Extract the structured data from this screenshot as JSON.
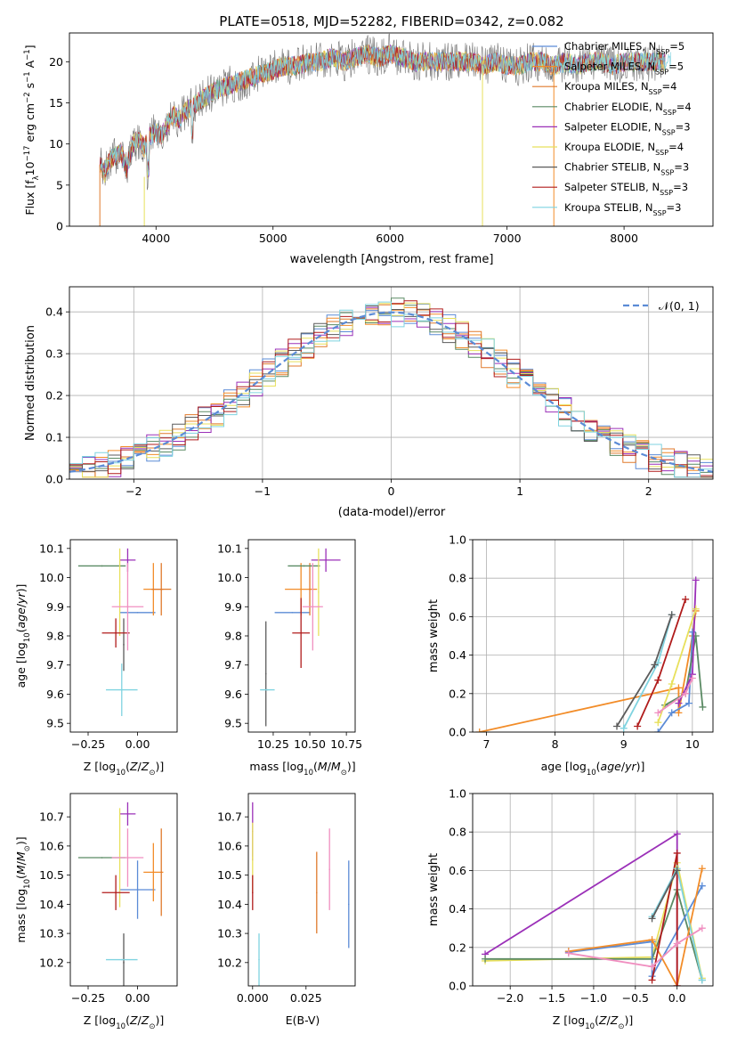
{
  "figure_title": "PLATE=0518, MJD=52282, FIBERID=0342, z=0.082",
  "series_colors": [
    "#5b8bd6",
    "#f28c28",
    "#e07a2c",
    "#5a8a63",
    "#9b30b8",
    "#e8e05c",
    "#5b5b5b",
    "#b01c1c",
    "#7fd3e0"
  ],
  "legend_spectrum": [
    {
      "name": "Chabrier MILES, N$_{SSP}$=5",
      "label": "Chabrier MILES, N",
      "sub": "SSP",
      "tail": "=5",
      "color": "#5b8bd6"
    },
    {
      "name": "Salpeter MILES, N$_{SSP}$=5",
      "label": "Salpeter MILES, N",
      "sub": "SSP",
      "tail": "=5",
      "color": "#f28c28"
    },
    {
      "name": "Kroupa MILES, N$_{SSP}$=4",
      "label": "Kroupa MILES, N",
      "sub": "SSP",
      "tail": "=4",
      "color": "#e07a2c"
    },
    {
      "name": "Chabrier ELODIE, N$_{SSP}$=4",
      "label": "Chabrier ELODIE, N",
      "sub": "SSP",
      "tail": "=4",
      "color": "#5a8a63"
    },
    {
      "name": "Salpeter ELODIE, N$_{SSP}$=3",
      "label": "Salpeter ELODIE, N",
      "sub": "SSP",
      "tail": "=3",
      "color": "#9b30b8"
    },
    {
      "name": "Kroupa ELODIE, N$_{SSP}$=4",
      "label": "Kroupa ELODIE, N",
      "sub": "SSP",
      "tail": "=4",
      "color": "#e8e05c"
    },
    {
      "name": "Chabrier STELIB, N$_{SSP}$=3",
      "label": "Chabrier STELIB, N",
      "sub": "SSP",
      "tail": "=3",
      "color": "#5b5b5b"
    },
    {
      "name": "Salpeter STELIB, N$_{SSP}$=3",
      "label": "Salpeter STELIB, N",
      "sub": "SSP",
      "tail": "=3",
      "color": "#b01c1c"
    },
    {
      "name": "Kroupa STELIB, N$_{SSP}$=3",
      "label": "Kroupa STELIB, N",
      "sub": "SSP",
      "tail": "=3",
      "color": "#7fd3e0"
    }
  ],
  "chart_data": [
    {
      "id": "spectrum",
      "type": "line",
      "title": "PLATE=0518, MJD=52282, FIBERID=0342, z=0.082",
      "xlabel": "wavelength [Angstrom, rest frame]",
      "ylabel": "Flux [f$_\\lambda$10$^{-17}$ erg cm$^{-2}$ s$^{-1}$ A$^{-1}$]",
      "xlim": [
        3260,
        8760
      ],
      "ylim": [
        0,
        23.5
      ],
      "xticks": [
        4000,
        5000,
        6000,
        7000,
        8000
      ],
      "yticks": [
        0,
        5,
        10,
        15,
        20
      ],
      "grid": false,
      "legend_loc": "right",
      "x": [
        3520,
        3560,
        3600,
        3650,
        3700,
        3750,
        3800,
        3850,
        3900,
        3950,
        4000,
        4050,
        4100,
        4150,
        4200,
        4250,
        4300,
        4350,
        4400,
        4450,
        4500,
        4600,
        4700,
        4800,
        4900,
        5000,
        5100,
        5200,
        5300,
        5400,
        5500,
        5600,
        5700,
        5800,
        5900,
        6000,
        6100,
        6200,
        6300,
        6400,
        6500,
        6600,
        6700,
        6800,
        6900,
        7000,
        7100,
        7200,
        7300,
        7400,
        7500,
        7600,
        7700,
        7800,
        7900,
        8000,
        8100,
        8200,
        8300,
        8400
      ],
      "y": [
        7.5,
        6.5,
        8.0,
        8.5,
        9.0,
        7.0,
        10.0,
        10.5,
        9.5,
        11.0,
        11.5,
        11.0,
        12.5,
        13.5,
        13.0,
        14.0,
        14.5,
        15.0,
        15.5,
        16.0,
        16.5,
        17.0,
        17.5,
        18.0,
        18.5,
        19.0,
        19.5,
        19.5,
        20.0,
        20.0,
        20.5,
        20.0,
        20.5,
        21.0,
        20.5,
        21.0,
        20.5,
        20.0,
        20.0,
        20.0,
        20.0,
        20.0,
        20.0,
        19.5,
        20.0,
        19.5,
        19.5,
        20.0,
        20.0,
        19.5,
        20.0,
        19.5,
        20.0,
        20.0,
        19.5,
        20.0,
        20.0,
        20.0,
        20.0,
        20.0
      ]
    },
    {
      "id": "residuals",
      "type": "line",
      "xlabel": "(data-model)/error",
      "ylabel": "Normed distribution",
      "xlim": [
        -2.5,
        2.5
      ],
      "ylim": [
        0,
        0.46
      ],
      "xticks": [
        -2,
        -1,
        0,
        1,
        2
      ],
      "yticks": [
        0.0,
        0.1,
        0.2,
        0.3,
        0.4
      ],
      "grid": true,
      "legend_loc": "upper right",
      "gaussian_label": "$\\mathcal{N}(0,1)$",
      "gaussian_label_text": "𝒩(0, 1)",
      "gaussian_color": "#5b8bd6",
      "bin_width": 0.1,
      "series": [
        {
          "name": "Chabrier MILES",
          "color": "#5b8bd6",
          "offset": 1
        },
        {
          "name": "Salpeter MILES",
          "color": "#f28c28",
          "offset": 2
        },
        {
          "name": "Kroupa MILES",
          "color": "#e07a2c",
          "offset": 3
        },
        {
          "name": "Chabrier ELODIE",
          "color": "#5a8a63",
          "offset": 4
        },
        {
          "name": "Salpeter ELODIE",
          "color": "#9b30b8",
          "offset": 5
        },
        {
          "name": "Kroupa ELODIE",
          "color": "#e8e05c",
          "offset": 6
        },
        {
          "name": "Chabrier STELIB",
          "color": "#5b5b5b",
          "offset": 7
        },
        {
          "name": "Salpeter STELIB",
          "color": "#b01c1c",
          "offset": 8
        },
        {
          "name": "Kroupa STELIB",
          "color": "#7fd3e0",
          "offset": 9
        }
      ]
    },
    {
      "id": "age_vs_Z",
      "type": "scatter",
      "xlabel": "Z [log$_{10}$(Z/Z$_\\odot$)]",
      "ylabel": "age  [log$_{10}$(age/yr)]",
      "xlim": [
        -0.34,
        0.2
      ],
      "ylim": [
        9.47,
        10.13
      ],
      "xticks": [
        -0.25,
        0.0
      ],
      "xticklabels": [
        "−0.25",
        "0.00"
      ],
      "yticks": [
        9.5,
        9.6,
        9.7,
        9.8,
        9.9,
        10.0,
        10.1
      ],
      "grid": false,
      "points": [
        {
          "x": 0.0,
          "y": 9.88,
          "xerr": 0.09,
          "yerr": 0.0,
          "color": "#5b8bd6"
        },
        {
          "x": 0.08,
          "y": 9.96,
          "xerr": 0.05,
          "yerr": 0.09,
          "color": "#f28c28"
        },
        {
          "x": 0.12,
          "y": 9.96,
          "xerr": 0.05,
          "yerr": 0.09,
          "color": "#e07a2c"
        },
        {
          "x": -0.18,
          "y": 10.04,
          "xerr": 0.12,
          "yerr": 0.0,
          "color": "#5a8a63"
        },
        {
          "x": -0.05,
          "y": 10.06,
          "xerr": 0.04,
          "yerr": 0.04,
          "color": "#9b30b8"
        },
        {
          "x": -0.09,
          "y": 9.95,
          "xerr": 0.0,
          "yerr": 0.15,
          "color": "#e8e05c"
        },
        {
          "x": -0.07,
          "y": 9.77,
          "xerr": 0.0,
          "yerr": 0.09,
          "color": "#5b5b5b"
        },
        {
          "x": -0.11,
          "y": 9.81,
          "xerr": 0.07,
          "yerr": 0.05,
          "color": "#b01c1c"
        },
        {
          "x": -0.08,
          "y": 9.615,
          "xerr": 0.08,
          "yerr": 0.09,
          "color": "#7fd3e0"
        },
        {
          "x": -0.05,
          "y": 9.9,
          "xerr": 0.08,
          "yerr": 0.15,
          "color": "#f08fc0"
        }
      ]
    },
    {
      "id": "age_vs_mass",
      "type": "scatter",
      "xlabel": "mass [log$_{10}$(M/M$_\\odot$)]",
      "ylabel": "",
      "xlim": [
        10.08,
        10.81
      ],
      "ylim": [
        9.47,
        10.13
      ],
      "xticks": [
        10.25,
        10.5,
        10.75
      ],
      "xticklabels": [
        "10.25",
        "10.50",
        "10.75"
      ],
      "yticks": [
        9.5,
        9.6,
        9.7,
        9.8,
        9.9,
        10.0,
        10.1
      ],
      "grid": false,
      "points": [
        {
          "x": 10.38,
          "y": 9.88,
          "xerr": 0.12,
          "yerr": 0.0,
          "color": "#5b8bd6"
        },
        {
          "x": 10.44,
          "y": 9.96,
          "xerr": 0.11,
          "yerr": 0.09,
          "color": "#f28c28"
        },
        {
          "x": 10.5,
          "y": 9.96,
          "xerr": 0.0,
          "yerr": 0.09,
          "color": "#e07a2c"
        },
        {
          "x": 10.46,
          "y": 10.04,
          "xerr": 0.11,
          "yerr": 0.0,
          "color": "#5a8a63"
        },
        {
          "x": 10.61,
          "y": 10.06,
          "xerr": 0.1,
          "yerr": 0.04,
          "color": "#9b30b8"
        },
        {
          "x": 10.56,
          "y": 9.95,
          "xerr": 0.0,
          "yerr": 0.15,
          "color": "#e8e05c"
        },
        {
          "x": 10.2,
          "y": 9.67,
          "xerr": 0.0,
          "yerr": 0.18,
          "color": "#5b5b5b"
        },
        {
          "x": 10.44,
          "y": 9.81,
          "xerr": 0.06,
          "yerr": 0.12,
          "color": "#b01c1c"
        },
        {
          "x": 10.21,
          "y": 9.615,
          "xerr": 0.05,
          "yerr": 0.0,
          "color": "#7fd3e0"
        },
        {
          "x": 10.52,
          "y": 9.9,
          "xerr": 0.07,
          "yerr": 0.15,
          "color": "#f08fc0"
        }
      ]
    },
    {
      "id": "weight_vs_age",
      "type": "line",
      "xlabel": "age  [log$_{10}$(age/yr)]",
      "ylabel": "mass weight",
      "xlim": [
        6.8,
        10.3
      ],
      "ylim": [
        0,
        1
      ],
      "xticks": [
        7,
        8,
        9,
        10
      ],
      "yticks": [
        0.0,
        0.2,
        0.4,
        0.6,
        0.8,
        1.0
      ],
      "grid": true,
      "series": [
        {
          "color": "#f28c28",
          "x": [
            6.9,
            9.8,
            9.8,
            10.0,
            10.05
          ],
          "y": [
            0.0,
            0.23,
            0.1,
            0.5,
            0.63
          ]
        },
        {
          "color": "#5b8bd6",
          "x": [
            9.5,
            9.7,
            9.95,
            10.0
          ],
          "y": [
            0.0,
            0.1,
            0.15,
            0.52
          ]
        },
        {
          "color": "#5a8a63",
          "x": [
            9.6,
            9.9,
            10.05,
            10.15
          ],
          "y": [
            0.14,
            0.2,
            0.5,
            0.13
          ]
        },
        {
          "color": "#9b30b8",
          "x": [
            9.8,
            10.0,
            10.05
          ],
          "y": [
            0.15,
            0.3,
            0.79
          ]
        },
        {
          "color": "#e8e05c",
          "x": [
            9.5,
            9.7,
            10.05
          ],
          "y": [
            0.05,
            0.25,
            0.64
          ]
        },
        {
          "color": "#b01c1c",
          "x": [
            9.2,
            9.5,
            9.9
          ],
          "y": [
            0.03,
            0.27,
            0.69
          ]
        },
        {
          "color": "#7fd3e0",
          "x": [
            9.0,
            9.5,
            9.7
          ],
          "y": [
            0.02,
            0.36,
            0.61
          ]
        },
        {
          "color": "#5b5b5b",
          "x": [
            8.9,
            9.45,
            9.7
          ],
          "y": [
            0.03,
            0.35,
            0.61
          ]
        },
        {
          "color": "#f08fc0",
          "x": [
            9.5,
            9.9,
            10.0
          ],
          "y": [
            0.1,
            0.2,
            0.28
          ]
        }
      ]
    },
    {
      "id": "mass_vs_Z",
      "type": "scatter",
      "xlabel": "Z [log$_{10}$(Z/Z$_\\odot$)]",
      "ylabel": "mass [log$_{10}$(M/M$_\\odot$)]",
      "xlim": [
        -0.34,
        0.2
      ],
      "ylim": [
        10.12,
        10.78
      ],
      "xticks": [
        -0.25,
        0.0
      ],
      "xticklabels": [
        "−0.25",
        "0.00"
      ],
      "yticks": [
        10.2,
        10.3,
        10.4,
        10.5,
        10.6,
        10.7
      ],
      "grid": false,
      "points": [
        {
          "x": 0.0,
          "y": 10.45,
          "xerr": 0.09,
          "yerr": 0.1,
          "color": "#5b8bd6"
        },
        {
          "x": 0.08,
          "y": 10.51,
          "xerr": 0.05,
          "yerr": 0.1,
          "color": "#f28c28"
        },
        {
          "x": 0.12,
          "y": 10.51,
          "xerr": 0.0,
          "yerr": 0.15,
          "color": "#e07a2c"
        },
        {
          "x": -0.18,
          "y": 10.56,
          "xerr": 0.12,
          "yerr": 0.0,
          "color": "#5a8a63"
        },
        {
          "x": -0.05,
          "y": 10.71,
          "xerr": 0.04,
          "yerr": 0.04,
          "color": "#9b30b8"
        },
        {
          "x": -0.09,
          "y": 10.56,
          "xerr": 0.0,
          "yerr": 0.17,
          "color": "#e8e05c"
        },
        {
          "x": -0.07,
          "y": 10.2,
          "xerr": 0.0,
          "yerr": 0.1,
          "color": "#5b5b5b"
        },
        {
          "x": -0.11,
          "y": 10.44,
          "xerr": 0.07,
          "yerr": 0.06,
          "color": "#b01c1c"
        },
        {
          "x": -0.08,
          "y": 10.21,
          "xerr": 0.08,
          "yerr": 0.0,
          "color": "#7fd3e0"
        },
        {
          "x": -0.05,
          "y": 10.56,
          "xerr": 0.08,
          "yerr": 0.1,
          "color": "#f08fc0"
        }
      ]
    },
    {
      "id": "mass_vs_ebv",
      "type": "scatter",
      "xlabel": "E(B-V)",
      "ylabel": "",
      "xlim": [
        -0.002,
        0.048
      ],
      "ylim": [
        10.12,
        10.78
      ],
      "xticks": [
        0.0,
        0.025
      ],
      "xticklabels": [
        "0.000",
        "0.025"
      ],
      "yticks": [
        10.2,
        10.3,
        10.4,
        10.5,
        10.6,
        10.7
      ],
      "grid": false,
      "points": [
        {
          "x": 0.045,
          "y": 10.4,
          "xerr": 0,
          "yerr": 0.15,
          "color": "#5b8bd6"
        },
        {
          "x": 0.03,
          "y": 10.44,
          "xerr": 0,
          "yerr": 0.14,
          "color": "#e07a2c"
        },
        {
          "x": 0.0,
          "y": 10.65,
          "xerr": 0,
          "yerr": 0.1,
          "color": "#9b30b8"
        },
        {
          "x": 0.0,
          "y": 10.56,
          "xerr": 0,
          "yerr": 0.12,
          "color": "#e8e05c"
        },
        {
          "x": 0.0,
          "y": 10.44,
          "xerr": 0,
          "yerr": 0.06,
          "color": "#b01c1c"
        },
        {
          "x": 0.003,
          "y": 10.21,
          "xerr": 0,
          "yerr": 0.09,
          "color": "#7fd3e0"
        },
        {
          "x": 0.036,
          "y": 10.52,
          "xerr": 0,
          "yerr": 0.14,
          "color": "#f08fc0"
        }
      ]
    },
    {
      "id": "weight_vs_Z",
      "type": "line",
      "xlabel": "Z [log$_{10}$(Z/Z$_\\odot$)]",
      "ylabel": "mass weight",
      "xlim": [
        -2.45,
        0.43
      ],
      "ylim": [
        0,
        1
      ],
      "xticks": [
        -2.0,
        -1.5,
        -1.0,
        -0.5,
        0.0
      ],
      "xticklabels": [
        "−2.0",
        "−1.5",
        "−1.0",
        "−0.5",
        "0.0"
      ],
      "yticks": [
        0.0,
        0.2,
        0.4,
        0.6,
        0.8,
        1.0
      ],
      "grid": true,
      "series": [
        {
          "color": "#9b30b8",
          "x": [
            -2.3,
            0.0,
            0.0
          ],
          "y": [
            0.165,
            0.79,
            0.0
          ]
        },
        {
          "color": "#e8e05c",
          "x": [
            -2.3,
            -0.3,
            0.0,
            0.3
          ],
          "y": [
            0.13,
            0.15,
            0.64,
            0.04
          ]
        },
        {
          "color": "#5a8a63",
          "x": [
            -2.3,
            -0.3,
            0.0,
            0.3
          ],
          "y": [
            0.14,
            0.14,
            0.5,
            0.03
          ]
        },
        {
          "color": "#5b8bd6",
          "x": [
            -1.3,
            -0.3,
            -0.3,
            0.3
          ],
          "y": [
            0.175,
            0.23,
            0.05,
            0.52
          ]
        },
        {
          "color": "#f28c28",
          "x": [
            -1.3,
            -0.3,
            0.0,
            0.3
          ],
          "y": [
            0.18,
            0.24,
            0.0,
            0.61
          ]
        },
        {
          "color": "#b01c1c",
          "x": [
            -0.3,
            0.0,
            0.0
          ],
          "y": [
            0.03,
            0.69,
            0.0
          ]
        },
        {
          "color": "#7fd3e0",
          "x": [
            -0.3,
            0.0,
            0.3
          ],
          "y": [
            0.36,
            0.61,
            0.03
          ]
        },
        {
          "color": "#5b5b5b",
          "x": [
            -0.3,
            0.0
          ],
          "y": [
            0.35,
            0.6
          ]
        },
        {
          "color": "#f08fc0",
          "x": [
            -1.3,
            -0.3,
            0.0,
            0.3
          ],
          "y": [
            0.17,
            0.1,
            0.22,
            0.3
          ]
        }
      ]
    }
  ]
}
